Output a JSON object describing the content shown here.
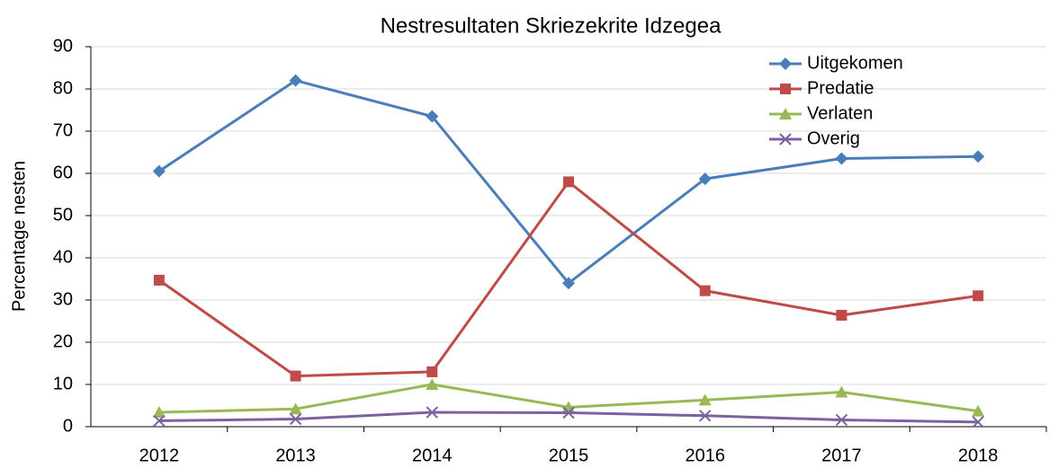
{
  "chart_data": {
    "type": "line",
    "title": "Nestresultaten Skriezekrite Idzegea",
    "y_label": "Percentage nesten",
    "categories": [
      "2012",
      "2013",
      "2014",
      "2015",
      "2016",
      "2017",
      "2018"
    ],
    "series": [
      {
        "name": "Uitgekomen",
        "color": "#4a7ebb",
        "marker": "diamond",
        "values": [
          60.5,
          82,
          73.5,
          34,
          58.7,
          63.5,
          64
        ]
      },
      {
        "name": "Predatie",
        "color": "#be4b48",
        "marker": "square",
        "values": [
          34.7,
          12,
          13,
          58,
          32.2,
          26.4,
          31
        ]
      },
      {
        "name": "Verlaten",
        "color": "#98b954",
        "marker": "triangle",
        "values": [
          3.4,
          4.2,
          10,
          4.6,
          6.3,
          8.2,
          3.7
        ]
      },
      {
        "name": "Overig",
        "color": "#7d60a0",
        "marker": "x",
        "values": [
          1.4,
          1.8,
          3.4,
          3.3,
          2.6,
          1.6,
          1.1
        ]
      }
    ],
    "ylim": [
      0,
      90
    ],
    "yticks": [
      0,
      10,
      20,
      30,
      40,
      50,
      60,
      70,
      80,
      90
    ],
    "grid": true,
    "legend": "top-right"
  }
}
